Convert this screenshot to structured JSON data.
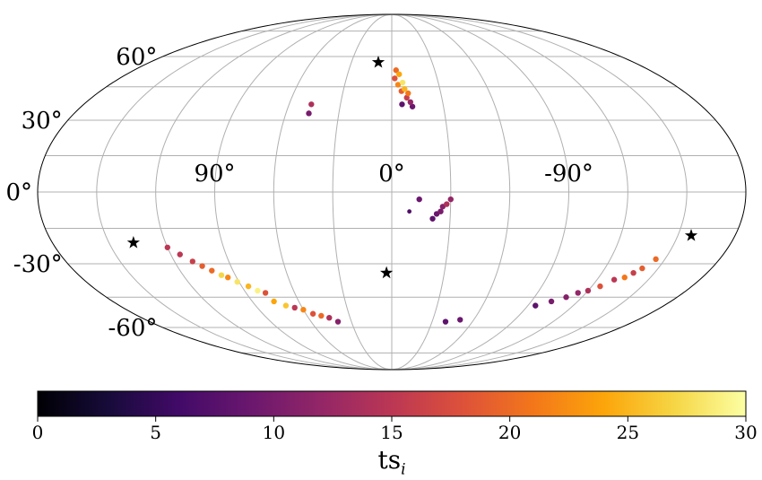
{
  "chart_data": {
    "type": "scatter",
    "projection": "mollweide",
    "x_ticks": [
      {
        "value": 90,
        "label": "90°"
      },
      {
        "value": 0,
        "label": "0°"
      },
      {
        "value": -90,
        "label": "-90°"
      }
    ],
    "y_ticks": [
      {
        "value": 60,
        "label": "60°"
      },
      {
        "value": 30,
        "label": "30°"
      },
      {
        "value": 0,
        "label": "0°"
      },
      {
        "value": -30,
        "label": "-30°"
      },
      {
        "value": -60,
        "label": "-60°"
      }
    ],
    "grid": true,
    "colormap": "inferno",
    "colorbar": {
      "vmin": 0,
      "vmax": 30,
      "ticks": [
        {
          "value": 0,
          "label": "0"
        },
        {
          "value": 5,
          "label": "5"
        },
        {
          "value": 10,
          "label": "10"
        },
        {
          "value": 15,
          "label": "15"
        },
        {
          "value": 20,
          "label": "20"
        },
        {
          "value": 25,
          "label": "25"
        },
        {
          "value": 30,
          "label": "30"
        }
      ],
      "label_main": "ts",
      "label_sub": "i",
      "position": "bottom"
    },
    "stars": [
      {
        "lon": 10,
        "lat": 57
      },
      {
        "lon": 137,
        "lat": -21
      },
      {
        "lon": 3,
        "lat": -34
      },
      {
        "lon": -157,
        "lat": -18
      }
    ],
    "points": [
      {
        "lon": -3,
        "lat": 53,
        "ts": 20
      },
      {
        "lon": -5,
        "lat": 51,
        "ts": 24
      },
      {
        "lon": -2,
        "lat": 49,
        "ts": 18
      },
      {
        "lon": -7,
        "lat": 47,
        "ts": 28
      },
      {
        "lon": -4,
        "lat": 46,
        "ts": 22
      },
      {
        "lon": -8,
        "lat": 44,
        "ts": 25
      },
      {
        "lon": -6,
        "lat": 43,
        "ts": 19
      },
      {
        "lon": -10,
        "lat": 42,
        "ts": 21
      },
      {
        "lon": -9,
        "lat": 40,
        "ts": 16
      },
      {
        "lon": -11,
        "lat": 38,
        "ts": 12
      },
      {
        "lon": -12,
        "lat": 36,
        "ts": 9
      },
      {
        "lon": -6,
        "lat": 37,
        "ts": 8
      },
      {
        "lon": 47,
        "lat": 37,
        "ts": 14
      },
      {
        "lon": 47,
        "lat": 33,
        "ts": 10
      },
      {
        "lon": -30,
        "lat": -3,
        "ts": 12
      },
      {
        "lon": -28,
        "lat": -5,
        "ts": 14
      },
      {
        "lon": -26,
        "lat": -6,
        "ts": 11
      },
      {
        "lon": -25,
        "lat": -8,
        "ts": 10
      },
      {
        "lon": -23,
        "lat": -9,
        "ts": 9
      },
      {
        "lon": -21,
        "lat": -11,
        "ts": 8
      },
      {
        "lon": -14,
        "lat": -3,
        "ts": 9
      },
      {
        "lon": -9,
        "lat": -8,
        "ts": 7
      },
      {
        "lon": 120,
        "lat": -23,
        "ts": 15
      },
      {
        "lon": 115,
        "lat": -26,
        "ts": 15
      },
      {
        "lon": 110,
        "lat": -29,
        "ts": 16
      },
      {
        "lon": 106,
        "lat": -31,
        "ts": 19
      },
      {
        "lon": 102,
        "lat": -33,
        "ts": 20
      },
      {
        "lon": 98,
        "lat": -35,
        "ts": 27
      },
      {
        "lon": 95,
        "lat": -36,
        "ts": 22
      },
      {
        "lon": 91,
        "lat": -38,
        "ts": 28
      },
      {
        "lon": 86,
        "lat": -40,
        "ts": 25
      },
      {
        "lon": 82,
        "lat": -42,
        "ts": 29
      },
      {
        "lon": 78,
        "lat": -43,
        "ts": 18
      },
      {
        "lon": 76,
        "lat": -47,
        "ts": 24
      },
      {
        "lon": 70,
        "lat": -49,
        "ts": 26
      },
      {
        "lon": 65,
        "lat": -50,
        "ts": 15
      },
      {
        "lon": 60,
        "lat": -51,
        "ts": 22
      },
      {
        "lon": 55,
        "lat": -53,
        "ts": 18
      },
      {
        "lon": 50,
        "lat": -54,
        "ts": 20
      },
      {
        "lon": 45,
        "lat": -55,
        "ts": 14
      },
      {
        "lon": 40,
        "lat": -57,
        "ts": 11
      },
      {
        "lon": -145,
        "lat": -28,
        "ts": 20
      },
      {
        "lon": -141,
        "lat": -32,
        "ts": 19
      },
      {
        "lon": -138,
        "lat": -34,
        "ts": 16
      },
      {
        "lon": -135,
        "lat": -36,
        "ts": 21
      },
      {
        "lon": -130,
        "lat": -37,
        "ts": 15
      },
      {
        "lon": -125,
        "lat": -40,
        "ts": 18
      },
      {
        "lon": -120,
        "lat": -42,
        "ts": 14
      },
      {
        "lon": -115,
        "lat": -43,
        "ts": 12
      },
      {
        "lon": -110,
        "lat": -45,
        "ts": 11
      },
      {
        "lon": -103,
        "lat": -47,
        "ts": 10
      },
      {
        "lon": -95,
        "lat": -49,
        "ts": 8
      },
      {
        "lon": -50,
        "lat": -56,
        "ts": 9
      },
      {
        "lon": -40,
        "lat": -57,
        "ts": 8
      }
    ]
  }
}
